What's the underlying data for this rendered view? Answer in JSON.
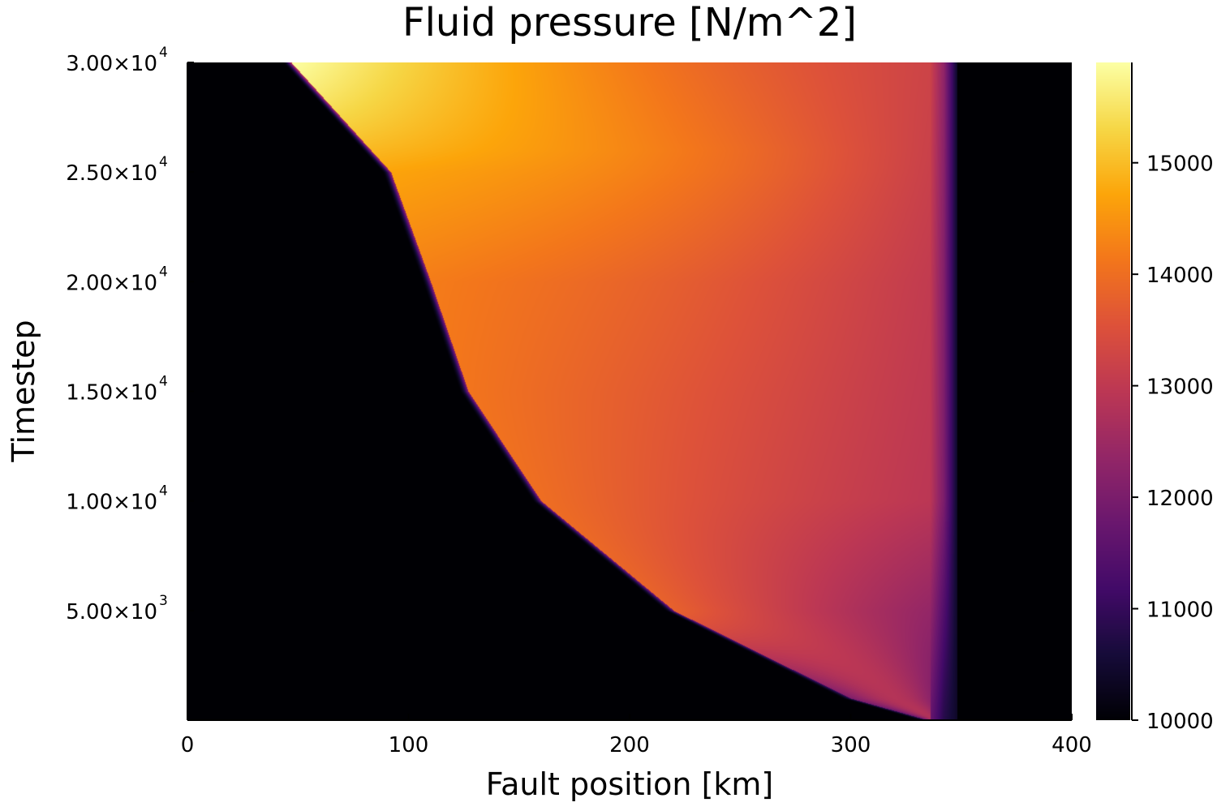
{
  "chart_data": {
    "type": "heatmap",
    "title": "Fluid pressure [N/m^2]",
    "xlabel": "Fault position [km]",
    "ylabel": "Timestep",
    "xlim": [
      0,
      400
    ],
    "ylim": [
      0,
      30000
    ],
    "xticks": [
      {
        "value": 0,
        "label": "0"
      },
      {
        "value": 100,
        "label": "100"
      },
      {
        "value": 200,
        "label": "200"
      },
      {
        "value": 300,
        "label": "300"
      },
      {
        "value": 400,
        "label": "400"
      }
    ],
    "yticks": [
      {
        "value": 5000,
        "mant": "5.00×10",
        "exp": "3"
      },
      {
        "value": 10000,
        "mant": "1.00×10",
        "exp": "4"
      },
      {
        "value": 15000,
        "mant": "1.50×10",
        "exp": "4"
      },
      {
        "value": 20000,
        "mant": "2.00×10",
        "exp": "4"
      },
      {
        "value": 25000,
        "mant": "2.50×10",
        "exp": "4"
      },
      {
        "value": 30000,
        "mant": "3.00×10",
        "exp": "4"
      }
    ],
    "colorbar": {
      "colormap": "inferno",
      "range": [
        10000,
        15900
      ],
      "ticks": [
        {
          "value": 10000,
          "label": "10000"
        },
        {
          "value": 11000,
          "label": "11000"
        },
        {
          "value": 12000,
          "label": "12000"
        },
        {
          "value": 13000,
          "label": "13000"
        },
        {
          "value": 14000,
          "label": "14000"
        },
        {
          "value": 15000,
          "label": "15000"
        }
      ]
    },
    "field": {
      "baseline": 10000,
      "right_boundary_km": 342,
      "front_position_km": [
        {
          "t": 0,
          "x": 335
        },
        {
          "t": 1000,
          "x": 300
        },
        {
          "t": 5000,
          "x": 220
        },
        {
          "t": 10000,
          "x": 160
        },
        {
          "t": 15000,
          "x": 127
        },
        {
          "t": 20000,
          "x": 110
        },
        {
          "t": 25000,
          "x": 92
        },
        {
          "t": 28000,
          "x": 65
        },
        {
          "t": 30000,
          "x": 47
        }
      ],
      "pressure_at_front": [
        {
          "t": 0,
          "p": 11600
        },
        {
          "t": 5000,
          "p": 13800
        },
        {
          "t": 10000,
          "p": 14000
        },
        {
          "t": 20000,
          "p": 14200
        },
        {
          "t": 25000,
          "p": 14700
        },
        {
          "t": 30000,
          "p": 15900
        }
      ],
      "pressure_at_boundary": [
        {
          "t": 0,
          "p": 11700
        },
        {
          "t": 10000,
          "p": 12900
        },
        {
          "t": 20000,
          "p": 13000
        },
        {
          "t": 30000,
          "p": 13200
        }
      ],
      "interior_peak": [
        {
          "t": 0,
          "p": 13500
        },
        {
          "t": 10000,
          "p": 13900
        },
        {
          "t": 20000,
          "p": 14400
        },
        {
          "t": 26000,
          "p": 15300
        },
        {
          "t": 30000,
          "p": 15400
        }
      ]
    }
  }
}
